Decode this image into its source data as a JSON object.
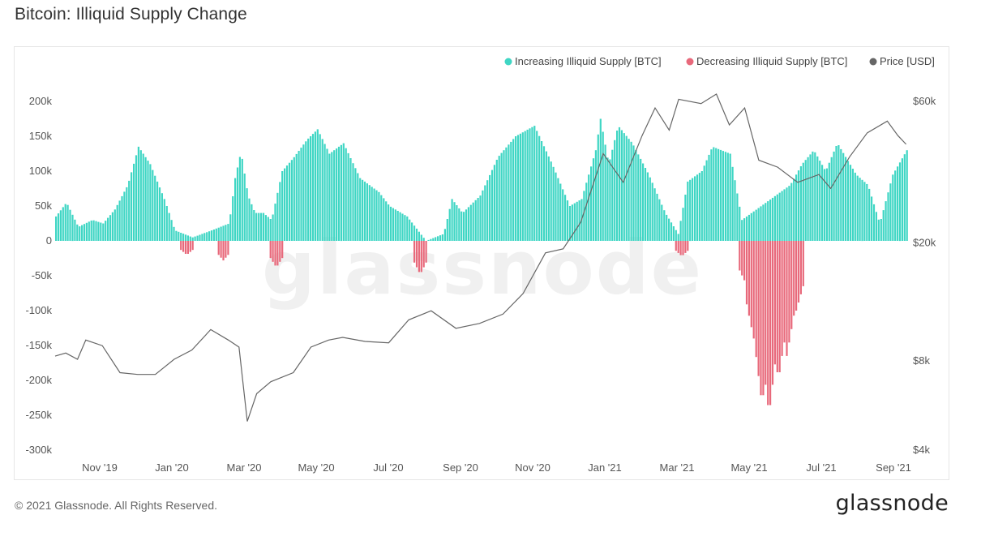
{
  "title": "Bitcoin: Illiquid Supply Change",
  "footer": {
    "copyright": "© 2021 Glassnode. All Rights Reserved.",
    "logo": "glassnode",
    "watermark": "glassnode"
  },
  "colors": {
    "increase": "#3fd6c4",
    "decrease": "#e8697b",
    "price": "#666666"
  },
  "chart_data": {
    "type": "bar",
    "title": "Bitcoin: Illiquid Supply Change",
    "legend_position": "top-right",
    "grid": false,
    "legend": [
      {
        "label": "Increasing Illiquid Supply [BTC]",
        "color": "#3fd6c4"
      },
      {
        "label": "Decreasing Illiquid Supply [BTC]",
        "color": "#e8697b"
      },
      {
        "label": "Price [USD]",
        "color": "#666666"
      }
    ],
    "y_left": {
      "ticks": [
        "200k",
        "150k",
        "100k",
        "50k",
        "0",
        "-50k",
        "-100k",
        "-150k",
        "-200k",
        "-250k",
        "-300k"
      ],
      "ylim": [
        -300000,
        200000
      ]
    },
    "y_right": {
      "scale": "log",
      "ticks": [
        "$60k",
        "$20k",
        "$8k",
        "$4k"
      ],
      "ylim": [
        4000,
        60000
      ]
    },
    "x_ticks": [
      "Nov '19",
      "Jan '20",
      "Mar '20",
      "May '20",
      "Jul '20",
      "Sep '20",
      "Nov '20",
      "Jan '21",
      "Mar '21",
      "May '21",
      "Jul '21",
      "Sep '21"
    ],
    "x_range": [
      "2019-10-01",
      "2021-09-25"
    ],
    "series": [
      {
        "name": "Increasing Illiquid Supply [BTC]",
        "kind": "bar",
        "points": [
          [
            "2019-10-01",
            35000
          ],
          [
            "2019-10-10",
            55000
          ],
          [
            "2019-10-20",
            20000
          ],
          [
            "2019-11-01",
            30000
          ],
          [
            "2019-11-10",
            25000
          ],
          [
            "2019-11-20",
            45000
          ],
          [
            "2019-12-01",
            80000
          ],
          [
            "2019-12-10",
            135000
          ],
          [
            "2019-12-20",
            110000
          ],
          [
            "2020-01-01",
            60000
          ],
          [
            "2020-01-10",
            15000
          ],
          [
            "2020-01-25",
            5000
          ],
          [
            "2020-02-10",
            15000
          ],
          [
            "2020-02-25",
            25000
          ],
          [
            "2020-03-01",
            90000
          ],
          [
            "2020-03-06",
            128000
          ],
          [
            "2020-03-12",
            65000
          ],
          [
            "2020-03-18",
            40000
          ],
          [
            "2020-03-25",
            40000
          ],
          [
            "2020-04-01",
            30000
          ],
          [
            "2020-04-10",
            100000
          ],
          [
            "2020-04-20",
            120000
          ],
          [
            "2020-05-01",
            145000
          ],
          [
            "2020-05-10",
            160000
          ],
          [
            "2020-05-20",
            125000
          ],
          [
            "2020-06-01",
            140000
          ],
          [
            "2020-06-15",
            90000
          ],
          [
            "2020-07-01",
            70000
          ],
          [
            "2020-07-10",
            50000
          ],
          [
            "2020-07-25",
            35000
          ],
          [
            "2020-08-10",
            0
          ],
          [
            "2020-08-25",
            10000
          ],
          [
            "2020-09-01",
            60000
          ],
          [
            "2020-09-10",
            40000
          ],
          [
            "2020-09-25",
            65000
          ],
          [
            "2020-10-10",
            120000
          ],
          [
            "2020-10-25",
            150000
          ],
          [
            "2020-11-10",
            165000
          ],
          [
            "2020-11-25",
            110000
          ],
          [
            "2020-12-10",
            50000
          ],
          [
            "2020-12-20",
            60000
          ],
          [
            "2021-01-01",
            130000
          ],
          [
            "2021-01-05",
            175000
          ],
          [
            "2021-01-12",
            110000
          ],
          [
            "2021-01-20",
            165000
          ],
          [
            "2021-02-01",
            140000
          ],
          [
            "2021-02-15",
            95000
          ],
          [
            "2021-03-01",
            40000
          ],
          [
            "2021-03-12",
            10000
          ],
          [
            "2021-03-20",
            85000
          ],
          [
            "2021-04-01",
            100000
          ],
          [
            "2021-04-10",
            135000
          ],
          [
            "2021-04-25",
            125000
          ],
          [
            "2021-05-05",
            30000
          ],
          [
            "2021-06-15",
            80000
          ],
          [
            "2021-06-25",
            110000
          ],
          [
            "2021-07-05",
            130000
          ],
          [
            "2021-07-15",
            100000
          ],
          [
            "2021-07-25",
            140000
          ],
          [
            "2021-08-10",
            95000
          ],
          [
            "2021-08-20",
            80000
          ],
          [
            "2021-08-30",
            25000
          ],
          [
            "2021-09-10",
            95000
          ],
          [
            "2021-09-22",
            130000
          ]
        ]
      },
      {
        "name": "Decreasing Illiquid Supply [BTC]",
        "kind": "bar",
        "points": [
          [
            "2020-01-20",
            -20000
          ],
          [
            "2020-02-20",
            -28000
          ],
          [
            "2020-04-05",
            -38000
          ],
          [
            "2020-08-05",
            -48000
          ],
          [
            "2021-03-15",
            -22000
          ],
          [
            "2021-05-08",
            -60000
          ],
          [
            "2021-05-15",
            -140000
          ],
          [
            "2021-05-22",
            -235000
          ],
          [
            "2021-05-28",
            -250000
          ],
          [
            "2021-06-05",
            -200000
          ],
          [
            "2021-06-12",
            -165000
          ],
          [
            "2021-06-20",
            -100000
          ]
        ]
      },
      {
        "name": "Price [USD]",
        "kind": "line",
        "points": [
          [
            "2019-10-01",
            8300
          ],
          [
            "2019-10-10",
            8500
          ],
          [
            "2019-10-20",
            8100
          ],
          [
            "2019-10-27",
            9400
          ],
          [
            "2019-11-10",
            9000
          ],
          [
            "2019-11-25",
            7300
          ],
          [
            "2019-12-10",
            7200
          ],
          [
            "2019-12-25",
            7200
          ],
          [
            "2020-01-10",
            8100
          ],
          [
            "2020-01-25",
            8700
          ],
          [
            "2020-02-10",
            10200
          ],
          [
            "2020-02-25",
            9400
          ],
          [
            "2020-03-05",
            8900
          ],
          [
            "2020-03-12",
            5000
          ],
          [
            "2020-03-20",
            6200
          ],
          [
            "2020-04-01",
            6800
          ],
          [
            "2020-04-20",
            7300
          ],
          [
            "2020-05-05",
            8900
          ],
          [
            "2020-05-20",
            9400
          ],
          [
            "2020-06-01",
            9600
          ],
          [
            "2020-06-20",
            9300
          ],
          [
            "2020-07-10",
            9200
          ],
          [
            "2020-07-27",
            11000
          ],
          [
            "2020-08-15",
            11800
          ],
          [
            "2020-09-05",
            10300
          ],
          [
            "2020-09-25",
            10700
          ],
          [
            "2020-10-15",
            11500
          ],
          [
            "2020-11-01",
            13500
          ],
          [
            "2020-11-20",
            18500
          ],
          [
            "2020-12-05",
            19100
          ],
          [
            "2020-12-20",
            23500
          ],
          [
            "2021-01-08",
            40000
          ],
          [
            "2021-01-25",
            32000
          ],
          [
            "2021-02-10",
            46000
          ],
          [
            "2021-02-21",
            57000
          ],
          [
            "2021-03-05",
            48000
          ],
          [
            "2021-03-13",
            61000
          ],
          [
            "2021-04-01",
            59000
          ],
          [
            "2021-04-14",
            63500
          ],
          [
            "2021-04-25",
            50000
          ],
          [
            "2021-05-08",
            57000
          ],
          [
            "2021-05-20",
            38000
          ],
          [
            "2021-06-05",
            36000
          ],
          [
            "2021-06-22",
            32000
          ],
          [
            "2021-07-10",
            34000
          ],
          [
            "2021-07-20",
            30500
          ],
          [
            "2021-08-05",
            39000
          ],
          [
            "2021-08-20",
            47000
          ],
          [
            "2021-09-06",
            51500
          ],
          [
            "2021-09-15",
            46000
          ],
          [
            "2021-09-22",
            43000
          ]
        ]
      }
    ]
  }
}
